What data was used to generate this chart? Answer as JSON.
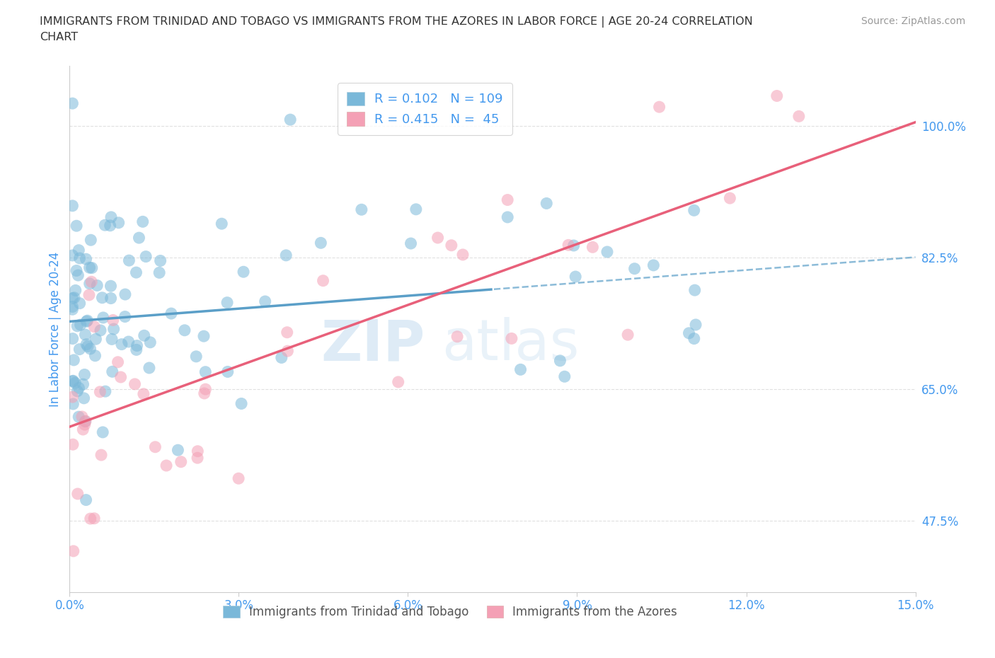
{
  "title": "IMMIGRANTS FROM TRINIDAD AND TOBAGO VS IMMIGRANTS FROM THE AZORES IN LABOR FORCE | AGE 20-24 CORRELATION\nCHART",
  "source": "Source: ZipAtlas.com",
  "xlabel_vals": [
    0.0,
    3.0,
    6.0,
    9.0,
    12.0,
    15.0
  ],
  "ylabel_vals": [
    47.5,
    65.0,
    82.5,
    100.0
  ],
  "xmin": 0.0,
  "xmax": 15.0,
  "ymin": 38.0,
  "ymax": 108.0,
  "legend_label1": "Immigrants from Trinidad and Tobago",
  "legend_label2": "Immigrants from the Azores",
  "color_blue": "#7ab8d9",
  "color_pink": "#f4a0b5",
  "color_blue_line": "#5b9fc8",
  "color_pink_line": "#e8607a",
  "watermark_zip": "ZIP",
  "watermark_atlas": "atlas",
  "title_color": "#333333",
  "axis_label_color": "#4499ee",
  "tick_color": "#4499ee",
  "grid_color": "#e0e0e0",
  "ylabel": "In Labor Force | Age 20-24",
  "blue_intercept": 74.0,
  "blue_slope": 0.57,
  "pink_intercept": 60.0,
  "pink_slope": 2.7,
  "blue_solid_end": 7.5,
  "R_blue": 0.102,
  "N_blue": 109,
  "R_pink": 0.415,
  "N_pink": 45
}
